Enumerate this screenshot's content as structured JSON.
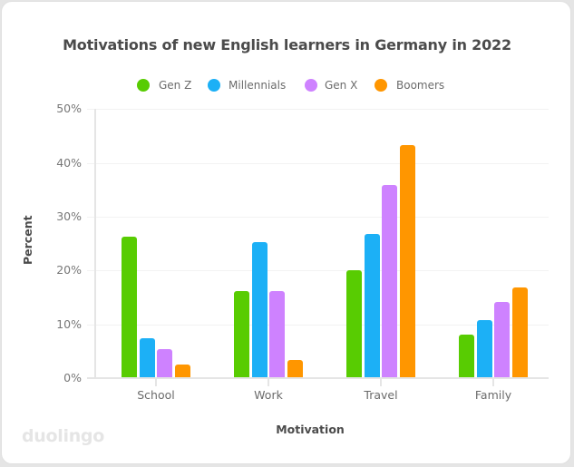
{
  "chart_data": {
    "type": "bar",
    "title": "Motivations of new English learners in Germany in 2022",
    "xlabel": "Motivation",
    "ylabel": "Percent",
    "categories": [
      "School",
      "Work",
      "Travel",
      "Family"
    ],
    "series": [
      {
        "name": "Gen Z",
        "color": "#58cc02",
        "values": [
          26.3,
          16.2,
          20.1,
          8.1
        ]
      },
      {
        "name": "Millennials",
        "color": "#1cb0f6",
        "values": [
          7.4,
          25.3,
          26.7,
          10.8
        ]
      },
      {
        "name": "Gen X",
        "color": "#ce82ff",
        "values": [
          5.4,
          16.2,
          35.9,
          14.1
        ]
      },
      {
        "name": "Boomers",
        "color": "#ff9600",
        "values": [
          2.5,
          3.4,
          43.3,
          16.9
        ]
      }
    ],
    "ylim": [
      0,
      50
    ],
    "yticks": [
      "0%",
      "10%",
      "20%",
      "30%",
      "40%",
      "50%"
    ],
    "grid": true,
    "legend_position": "top"
  },
  "watermark": "duolingo"
}
